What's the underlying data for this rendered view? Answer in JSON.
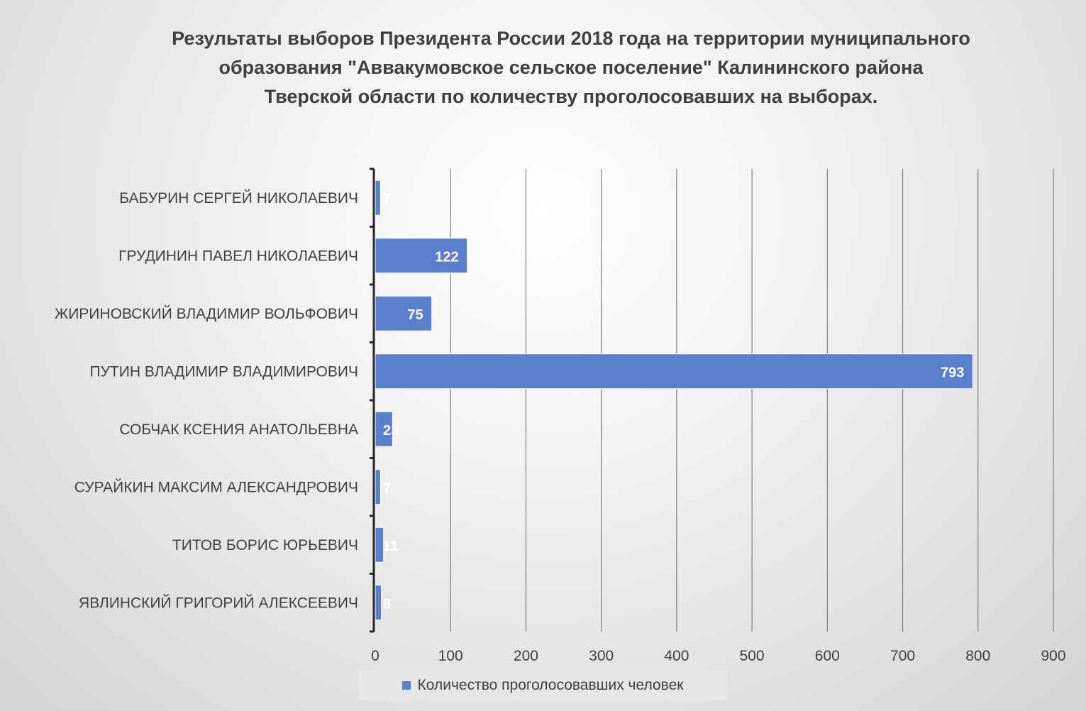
{
  "chart_data": {
    "type": "bar",
    "orientation": "horizontal",
    "title": "Результаты выборов Президента России 2018 года на территории муниципального образования \"Аввакумовское сельское поселение\" Калининского района Тверской области по количеству проголосовавших на выборах.",
    "title_lines": [
      "Результаты выборов Президента России 2018 года на территории муниципального",
      "образования \"Аввакумовское сельское поселение\" Калининского района",
      "Тверской области по количеству проголосовавших на выборах."
    ],
    "categories": [
      "БАБУРИН СЕРГЕЙ НИКОЛАЕВИЧ",
      "ГРУДИНИН ПАВЕЛ НИКОЛАЕВИЧ",
      "ЖИРИНОВСКИЙ ВЛАДИМИР ВОЛЬФОВИЧ",
      "ПУТИН ВЛАДИМИР ВЛАДИМИРОВИЧ",
      "СОБЧАК КСЕНИЯ АНАТОЛЬЕВНА",
      "СУРАЙКИН МАКСИМ АЛЕКСАНДРОВИЧ",
      "ТИТОВ БОРИС ЮРЬЕВИЧ",
      "ЯВЛИНСКИЙ ГРИГОРИЙ АЛЕКСЕЕВИЧ"
    ],
    "series": [
      {
        "name": "Количество проголосовавших человек",
        "values": [
          7,
          122,
          75,
          793,
          23,
          7,
          11,
          8
        ]
      }
    ],
    "xlim": [
      0,
      900
    ],
    "xticks": [
      0,
      100,
      200,
      300,
      400,
      500,
      600,
      700,
      800,
      900
    ],
    "grid": "vertical",
    "legend_position": "bottom",
    "bar_color": "#5b7fcf"
  }
}
